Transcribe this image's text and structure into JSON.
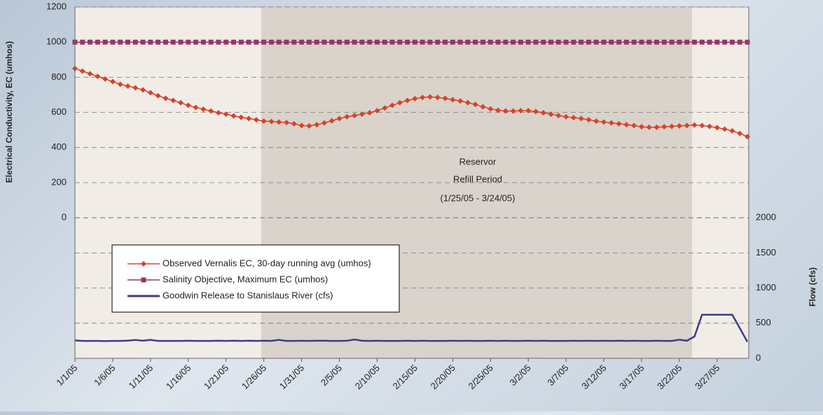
{
  "chart_data": {
    "type": "line",
    "y_axis_label": "Electrical Conductivity, EC (umhos)",
    "y2_axis_label": "Flow (cfs)",
    "annotation": [
      "Reservor",
      "Refill Period",
      "(1/25/05 - 3/24/05)"
    ],
    "categories": [
      "1/1/05",
      null,
      null,
      null,
      null,
      "1/6/05",
      null,
      null,
      null,
      null,
      "1/11/05",
      null,
      null,
      null,
      null,
      "1/16/05",
      null,
      null,
      null,
      null,
      "1/21/05",
      null,
      null,
      null,
      null,
      "1/26/05",
      null,
      null,
      null,
      null,
      "1/31/05",
      null,
      null,
      null,
      null,
      "2/5/05",
      null,
      null,
      null,
      null,
      "2/10/05",
      null,
      null,
      null,
      null,
      "2/15/05",
      null,
      null,
      null,
      null,
      "2/20/05",
      null,
      null,
      null,
      null,
      "2/25/05",
      null,
      null,
      null,
      null,
      "3/2/05",
      null,
      null,
      null,
      null,
      "3/7/05",
      null,
      null,
      null,
      null,
      "3/12/05",
      null,
      null,
      null,
      null,
      "3/17/05",
      null,
      null,
      null,
      null,
      "3/22/05",
      null,
      null,
      null,
      null,
      "3/27/05",
      null,
      null,
      null,
      null
    ],
    "series": [
      {
        "name": "Observed Vernalis EC, 30-day running avg (umhos)",
        "color": "#d8412c",
        "marker": "diamond",
        "values": [
          850,
          835,
          820,
          805,
          790,
          775,
          760,
          750,
          740,
          728,
          712,
          695,
          680,
          668,
          655,
          640,
          628,
          618,
          608,
          598,
          590,
          580,
          572,
          565,
          558,
          550,
          548,
          545,
          542,
          535,
          525,
          523,
          530,
          540,
          552,
          565,
          575,
          582,
          590,
          598,
          610,
          625,
          640,
          655,
          668,
          678,
          685,
          688,
          685,
          680,
          672,
          665,
          655,
          645,
          632,
          620,
          612,
          608,
          608,
          610,
          610,
          605,
          598,
          590,
          582,
          575,
          570,
          565,
          558,
          550,
          545,
          540,
          535,
          530,
          525,
          518,
          515,
          515,
          518,
          520,
          523,
          525,
          528,
          525,
          520,
          513,
          505,
          495,
          480,
          462
        ]
      },
      {
        "name": "Salinity Objective, Maximum EC (umhos)",
        "color": "#993366",
        "marker": "square",
        "values": [
          1000,
          1000,
          1000,
          1000,
          1000,
          1000,
          1000,
          1000,
          1000,
          1000,
          1000,
          1000,
          1000,
          1000,
          1000,
          1000,
          1000,
          1000,
          1000,
          1000,
          1000,
          1000,
          1000,
          1000,
          1000,
          1000,
          1000,
          1000,
          1000,
          1000,
          1000,
          1000,
          1000,
          1000,
          1000,
          1000,
          1000,
          1000,
          1000,
          1000,
          1000,
          1000,
          1000,
          1000,
          1000,
          1000,
          1000,
          1000,
          1000,
          1000,
          1000,
          1000,
          1000,
          1000,
          1000,
          1000,
          1000,
          1000,
          1000,
          1000,
          1000,
          1000,
          1000,
          1000,
          1000,
          1000,
          1000,
          1000,
          1000,
          1000,
          1000,
          1000,
          1000,
          1000,
          1000,
          1000,
          1000,
          1000,
          1000,
          1000,
          1000,
          1000,
          1000,
          1000,
          1000,
          1000,
          1000,
          1000,
          1000,
          1000
        ]
      },
      {
        "name": "Goodwin Release to Stanislaus River (cfs)",
        "color": "#3c3c8c",
        "marker": "none",
        "axis": "y2",
        "values": [
          255,
          248,
          248,
          248,
          245,
          248,
          248,
          252,
          262,
          250,
          262,
          248,
          248,
          248,
          248,
          250,
          248,
          248,
          248,
          250,
          248,
          250,
          248,
          250,
          248,
          250,
          248,
          262,
          248,
          248,
          250,
          248,
          250,
          250,
          248,
          248,
          250,
          268,
          250,
          248,
          250,
          248,
          248,
          248,
          250,
          248,
          250,
          248,
          248,
          248,
          250,
          248,
          250,
          248,
          248,
          250,
          248,
          250,
          248,
          248,
          250,
          248,
          250,
          248,
          248,
          248,
          250,
          248,
          250,
          248,
          250,
          248,
          250,
          248,
          250,
          248,
          248,
          250,
          248,
          248,
          265,
          250,
          310,
          620,
          620,
          620,
          620,
          620,
          430,
          235
        ]
      }
    ],
    "ylim": [
      -800,
      1200
    ],
    "yticks": [
      0,
      200,
      400,
      600,
      800,
      1000,
      1200
    ],
    "y2lim": [
      0,
      5000
    ],
    "y2ticks": [
      0,
      500,
      1000,
      1500,
      2000
    ],
    "grid": true,
    "legend": "lower left"
  }
}
